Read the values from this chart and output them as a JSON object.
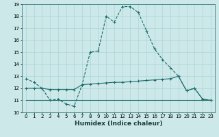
{
  "xlabel": "Humidex (Indice chaleur)",
  "xlim": [
    -0.5,
    23.5
  ],
  "ylim": [
    10,
    19
  ],
  "yticks": [
    10,
    11,
    12,
    13,
    14,
    15,
    16,
    17,
    18,
    19
  ],
  "xticks": [
    0,
    1,
    2,
    3,
    4,
    5,
    6,
    7,
    8,
    9,
    10,
    11,
    12,
    13,
    14,
    15,
    16,
    17,
    18,
    19,
    20,
    21,
    22,
    23
  ],
  "bg_color": "#cce8e8",
  "line_color": "#1a6b6b",
  "grid_color": "#b0d8d8",
  "line1_x": [
    0,
    1,
    2,
    3,
    4,
    5,
    6,
    7,
    8,
    9,
    10,
    11,
    12,
    13,
    14,
    15,
    16,
    17,
    18,
    19,
    20,
    21,
    22,
    23
  ],
  "line1_y": [
    12.8,
    12.5,
    12.0,
    11.0,
    11.1,
    10.7,
    10.5,
    12.3,
    15.0,
    15.1,
    18.0,
    17.5,
    18.8,
    18.8,
    18.3,
    16.8,
    15.3,
    14.4,
    13.7,
    13.0,
    11.8,
    12.0,
    11.1,
    11.0
  ],
  "line2_x": [
    0,
    23
  ],
  "line2_y": [
    11.0,
    11.0
  ],
  "line3_x": [
    0,
    1,
    2,
    3,
    4,
    5,
    6,
    7,
    8,
    9,
    10,
    11,
    12,
    13,
    14,
    15,
    16,
    17,
    18,
    19,
    20,
    21,
    22,
    23
  ],
  "line3_y": [
    12.0,
    12.0,
    12.0,
    11.9,
    11.9,
    11.9,
    11.9,
    12.3,
    12.35,
    12.4,
    12.45,
    12.5,
    12.5,
    12.55,
    12.6,
    12.65,
    12.7,
    12.75,
    12.8,
    13.0,
    11.8,
    12.0,
    11.1,
    11.0
  ]
}
